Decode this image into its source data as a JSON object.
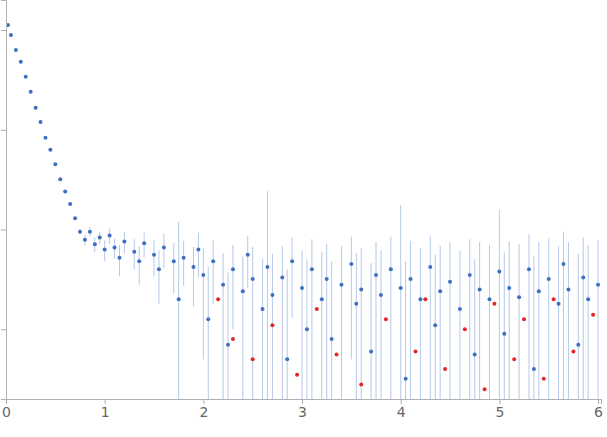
{
  "chart_data": {
    "type": "scatter",
    "log": "y",
    "tick_labels": "x",
    "grid": false,
    "xlim": [
      0,
      6.03
    ],
    "xticks": [
      0,
      1,
      2,
      3,
      4,
      5,
      6
    ],
    "ylim": [
      0.0002,
      2
    ],
    "yticks": [
      0.001,
      0.01,
      0.1,
      1
    ],
    "series": [
      {
        "color": "#3d6fc4",
        "marker": "circle",
        "x": [
          0.02,
          0.05,
          0.1,
          0.15,
          0.2,
          0.25,
          0.3,
          0.35,
          0.4,
          0.45,
          0.5,
          0.55,
          0.6,
          0.65,
          0.7,
          0.75,
          0.8,
          0.85,
          0.9,
          0.95,
          1.0,
          1.05,
          1.1,
          1.15,
          1.2,
          1.3,
          1.35,
          1.4,
          1.5,
          1.55,
          1.6,
          1.7,
          1.75,
          1.8,
          1.9,
          1.95,
          2.0,
          2.05,
          2.1,
          2.2,
          2.25,
          2.3,
          2.4,
          2.45,
          2.5,
          2.6,
          2.65,
          2.7,
          2.8,
          2.85,
          2.9,
          3.0,
          3.05,
          3.1,
          3.2,
          3.25,
          3.3,
          3.4,
          3.5,
          3.55,
          3.6,
          3.7,
          3.75,
          3.8,
          3.9,
          4.0,
          4.05,
          4.1,
          4.2,
          4.3,
          4.35,
          4.4,
          4.5,
          4.6,
          4.7,
          4.75,
          4.8,
          4.9,
          5.0,
          5.05,
          5.1,
          5.2,
          5.3,
          5.35,
          5.4,
          5.5,
          5.6,
          5.65,
          5.7,
          5.8,
          5.85,
          5.9,
          6.0
        ],
        "values": [
          1.12,
          0.89,
          0.63,
          0.48,
          0.34,
          0.24,
          0.166,
          0.12,
          0.083,
          0.063,
          0.045,
          0.032,
          0.024,
          0.018,
          0.013,
          0.0095,
          0.0079,
          0.0095,
          0.0071,
          0.0083,
          0.0063,
          0.0087,
          0.0066,
          0.0052,
          0.0076,
          0.006,
          0.0048,
          0.0073,
          0.0056,
          0.004,
          0.0066,
          0.0048,
          0.002,
          0.0052,
          0.0042,
          0.0063,
          0.0035,
          0.00126,
          0.0048,
          0.0028,
          0.0007,
          0.004,
          0.0024,
          0.0056,
          0.0032,
          0.0016,
          0.0042,
          0.0022,
          0.0033,
          0.0005,
          0.0048,
          0.0026,
          0.001,
          0.004,
          0.002,
          0.0032,
          0.0008,
          0.0028,
          0.0045,
          0.0018,
          0.0025,
          0.0006,
          0.0035,
          0.0022,
          0.004,
          0.0026,
          0.00032,
          0.0032,
          0.002,
          0.0042,
          0.0011,
          0.0024,
          0.003,
          0.0016,
          0.0035,
          0.00056,
          0.0025,
          0.002,
          0.0038,
          0.0009,
          0.0026,
          0.0021,
          0.004,
          0.0004,
          0.0024,
          0.0032,
          0.0018,
          0.0045,
          0.0025,
          0.0007,
          0.0033,
          0.002,
          0.0028
        ],
        "errors": [
          0.02,
          0.015,
          0.01,
          0.008,
          0.005,
          0.003,
          0.002,
          0.0015,
          0.001,
          0.0008,
          0.0006,
          0.0005,
          0.0004,
          0.0004,
          0.0004,
          0.0005,
          0.001,
          0.001,
          0.0012,
          0.0012,
          0.0015,
          0.0015,
          0.0015,
          0.0018,
          0.0018,
          0.002,
          0.002,
          0.002,
          0.0022,
          0.0022,
          0.0025,
          0.0025,
          0.01,
          0.0025,
          0.0025,
          0.003,
          0.003,
          0.003,
          0.003,
          0.003,
          0.003,
          0.003,
          0.003,
          0.003,
          0.0035,
          0.0035,
          0.02,
          0.0035,
          0.0035,
          0.0035,
          0.0035,
          0.0035,
          0.004,
          0.004,
          0.004,
          0.004,
          0.004,
          0.004,
          0.004,
          0.004,
          0.004,
          0.004,
          0.004,
          0.004,
          0.0045,
          0.015,
          0.0045,
          0.0045,
          0.0045,
          0.0045,
          0.0045,
          0.0045,
          0.0045,
          0.0045,
          0.0045,
          0.0045,
          0.005,
          0.005,
          0.012,
          0.005,
          0.005,
          0.005,
          0.005,
          0.005,
          0.005,
          0.005,
          0.005,
          0.005,
          0.005,
          0.005,
          0.005,
          0.005,
          0.005
        ]
      },
      {
        "color": "#e5262b",
        "marker": "circle",
        "x": [
          2.15,
          2.3,
          2.5,
          2.7,
          2.95,
          3.15,
          3.35,
          3.6,
          3.85,
          4.15,
          4.25,
          4.45,
          4.65,
          4.85,
          4.95,
          5.15,
          5.25,
          5.45,
          5.55,
          5.75,
          5.95
        ],
        "values": [
          0.002,
          0.0008,
          0.0005,
          0.0011,
          0.00035,
          0.0016,
          0.00056,
          0.00028,
          0.00126,
          0.0006,
          0.002,
          0.0004,
          0.001,
          0.00025,
          0.0018,
          0.0005,
          0.00126,
          0.00032,
          0.002,
          0.0006,
          0.0014
        ]
      }
    ]
  }
}
